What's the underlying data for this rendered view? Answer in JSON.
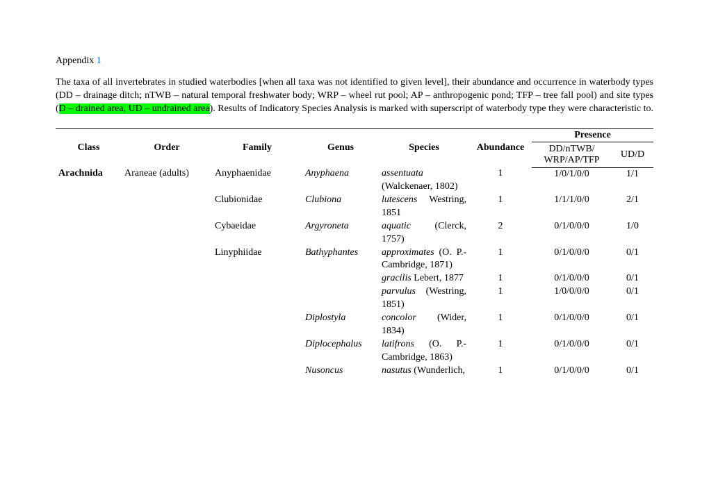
{
  "appendix_label": "Appendix ",
  "appendix_number": "1",
  "description_pre": "The taxa of all invertebrates in studied waterbodies [when all taxa was not identified to given level], their abundance and occurrence in waterbody types (DD – drainage ditch; nTWB – natural temporal freshwater body; WRP – wheel rut pool; AP – anthropogenic pond; TFP – tree fall pool) and site types (",
  "highlight_text": "D – drained area, UD – undrained area",
  "description_post": "). Results of Indicatory Species Analysis is marked with superscript of waterbody type they were characteristic to.",
  "headers": {
    "class": "Class",
    "order": "Order",
    "family": "Family",
    "genus": "Genus",
    "species": "Species",
    "abundance": "Abundance",
    "presence": "Presence",
    "presence1": "DD/nTWB/ WRP/AP/TFP",
    "presence2": "UD/D"
  },
  "rows": [
    {
      "class": "Arachnida",
      "order": "Araneae (adults)",
      "family": "Anyphaenidae",
      "genus": "Anyphaena",
      "species": "assentuata",
      "auth": "(Walckenaer, 1802)",
      "abund": "1",
      "p1": "1/0/1/0/0",
      "p2": "1/1"
    },
    {
      "class": "",
      "order": "",
      "family": "Clubionidae",
      "genus": "Clubiona",
      "species": "lutescens",
      "auth": "Westring, 1851",
      "abund": "1",
      "p1": "1/1/1/0/0",
      "p2": "2/1"
    },
    {
      "class": "",
      "order": "",
      "family": "Cybaeidae",
      "genus": "Argyroneta",
      "species": "aquatic",
      "auth": "(Clerck, 1757)",
      "abund": "2",
      "p1": "0/1/0/0/0",
      "p2": "1/0"
    },
    {
      "class": "",
      "order": "",
      "family": "Linyphiidae",
      "genus": "Bathyphantes",
      "species": "approximates",
      "auth": "(O. P.-Cambridge, 1871)",
      "abund": "1",
      "p1": "0/1/0/0/0",
      "p2": "0/1"
    },
    {
      "class": "",
      "order": "",
      "family": "",
      "genus": "",
      "species": "gracilis",
      "auth": "Lebert, 1877",
      "abund": "1",
      "p1": "0/1/0/0/0",
      "p2": "0/1"
    },
    {
      "class": "",
      "order": "",
      "family": "",
      "genus": "",
      "species": "parvulus",
      "auth": "(Westring, 1851)",
      "abund": "1",
      "p1": "1/0/0/0/0",
      "p2": "0/1"
    },
    {
      "class": "",
      "order": "",
      "family": "",
      "genus": "Diplostyla",
      "species": "concolor",
      "auth": "(Wider, 1834)",
      "abund": "1",
      "p1": "0/1/0/0/0",
      "p2": "0/1"
    },
    {
      "class": "",
      "order": "",
      "family": "",
      "genus": "Diplocephalus",
      "species": "latifrons",
      "auth": "(O. P.-Cambridge, 1863)",
      "abund": "1",
      "p1": "0/1/0/0/0",
      "p2": "0/1"
    },
    {
      "class": "",
      "order": "",
      "family": "",
      "genus": "Nusoncus",
      "species": "nasutus",
      "auth": "(Wunderlich,",
      "abund": "1",
      "p1": "0/1/0/0/0",
      "p2": "0/1"
    }
  ]
}
